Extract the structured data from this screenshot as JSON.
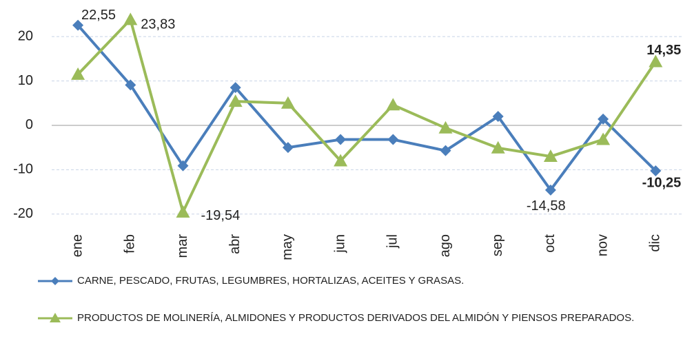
{
  "chart_data": {
    "type": "line",
    "categories": [
      "ene",
      "feb",
      "mar",
      "abr",
      "may",
      "jun",
      "jul",
      "ago",
      "sep",
      "oct",
      "nov",
      "dic"
    ],
    "series": [
      {
        "name": "CARNE, PESCADO, FRUTAS, LEGUMBRES, HORTALIZAS, ACEITES Y GRASAS.",
        "color": "#4a7ebb",
        "marker": "diamond",
        "values": [
          22.55,
          9.1,
          -9.1,
          8.5,
          -5,
          -3.2,
          -3.2,
          -5.7,
          2,
          -14.58,
          1.4,
          -10.25
        ],
        "value_labels": [
          "22,55",
          null,
          null,
          null,
          null,
          null,
          null,
          null,
          null,
          "-14,58",
          null,
          "-10,25"
        ]
      },
      {
        "name": "PRODUCTOS DE MOLINERÍA, ALMIDONES Y PRODUCTOS DERIVADOS DEL ALMIDÓN Y PIENSOS PREPARADOS.",
        "color": "#9bbb59",
        "marker": "triangle",
        "values": [
          11.5,
          23.83,
          -19.54,
          5.4,
          5,
          -8,
          4.6,
          -0.6,
          -5.1,
          -7,
          -3.2,
          14.35
        ],
        "value_labels": [
          null,
          "23,83",
          "-19,54",
          null,
          null,
          null,
          null,
          null,
          null,
          null,
          null,
          "14,35"
        ]
      }
    ],
    "ylim": [
      -25,
      27
    ],
    "yticks": [
      -20,
      -10,
      0,
      10,
      20
    ],
    "grid": true
  }
}
